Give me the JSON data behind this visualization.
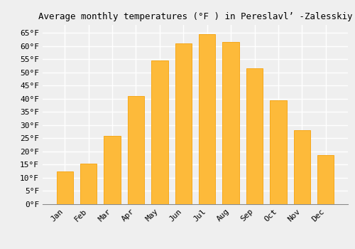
{
  "months": [
    "Jan",
    "Feb",
    "Mar",
    "Apr",
    "May",
    "Jun",
    "Jul",
    "Aug",
    "Sep",
    "Oct",
    "Nov",
    "Dec"
  ],
  "values": [
    12.5,
    15.5,
    26.0,
    41.0,
    54.5,
    61.0,
    64.5,
    61.5,
    51.5,
    39.5,
    28.0,
    18.5
  ],
  "bar_color": "#FDBA3A",
  "bar_edge_color": "#F5A81C",
  "background_color": "#EFEFEF",
  "grid_color": "#FFFFFF",
  "title": "Average monthly temperatures (°F ) in Pereslavl’ -Zalesskiy",
  "yticks": [
    0,
    5,
    10,
    15,
    20,
    25,
    30,
    35,
    40,
    45,
    50,
    55,
    60,
    65
  ],
  "ylim": [
    0,
    68
  ],
  "title_fontsize": 9,
  "tick_fontsize": 8,
  "font_family": "monospace"
}
